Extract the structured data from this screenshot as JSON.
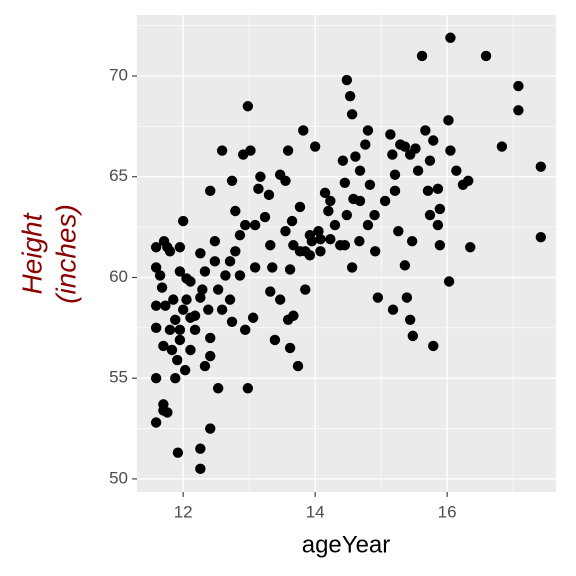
{
  "chart_data": {
    "type": "scatter",
    "xlabel": "ageYear",
    "ylabel_lines": [
      "Height",
      "(inches)"
    ],
    "color": "#000000",
    "grid": true,
    "xlim": [
      11.3,
      17.65
    ],
    "ylim": [
      49.35,
      73.03
    ],
    "xticks": [
      12,
      14,
      16
    ],
    "yticks": [
      50,
      55,
      60,
      65,
      70
    ],
    "x": [
      11.59,
      11.7,
      11.7,
      11.76,
      11.92,
      12.26,
      12.26,
      12.41,
      11.59,
      11.59,
      11.59,
      11.59,
      11.59,
      11.65,
      11.68,
      11.71,
      11.76,
      11.8,
      11.85,
      11.8,
      11.7,
      11.83,
      11.88,
      11.91,
      11.95,
      12.0,
      11.95,
      11.95,
      12.05,
      12.05,
      12.11,
      12.11,
      12.18,
      12.11,
      12.03,
      12.26,
      12.29,
      12.33,
      12.38,
      12.41,
      12.41,
      12.41,
      12.48,
      12.48,
      12.53,
      12.53,
      12.59,
      12.64,
      12.71,
      12.74,
      12.79,
      12.79,
      12.74,
      12.86,
      12.91,
      12.94,
      12.94,
      12.98,
      12.98,
      13.02,
      13.06,
      13.09,
      13.14,
      13.17,
      13.24,
      13.3,
      13.35,
      13.32,
      13.39,
      13.47,
      13.47,
      13.59,
      13.55,
      13.55,
      13.59,
      13.62,
      13.67,
      13.67,
      13.74,
      13.77,
      13.82,
      13.85,
      13.85,
      13.92,
      13.95,
      14.0,
      14.05,
      14.08,
      14.15,
      14.2,
      14.23,
      14.3,
      14.38,
      14.42,
      14.45,
      14.48,
      14.53,
      14.48,
      14.56,
      14.61,
      14.58,
      14.67,
      14.68,
      14.56,
      14.76,
      14.8,
      14.83,
      14.8,
      14.91,
      14.95,
      15.06,
      15.14,
      15.17,
      15.21,
      15.18,
      15.26,
      15.36,
      15.39,
      15.36,
      15.44,
      15.47,
      15.44,
      15.48,
      15.56,
      15.62,
      15.67,
      15.71,
      15.79,
      15.74,
      15.89,
      15.86,
      15.86,
      16.02,
      16.03,
      16.05,
      16.14,
      16.24,
      16.32,
      16.35,
      16.59,
      16.83,
      17.08,
      17.08,
      17.42,
      17.42,
      14.9,
      15.21,
      15.29,
      15.52,
      15.74,
      15.79,
      15.89,
      16.05,
      14.68,
      14.23,
      13.65,
      14.08,
      14.45,
      13.77,
      13.32,
      13.09,
      12.71,
      12.59,
      12.26,
      11.88,
      11.95,
      11.73,
      12.18,
      12.33,
      12.0,
      12.86,
      13.62,
      13.92
    ],
    "y": [
      52.8,
      53.7,
      53.4,
      53.3,
      51.3,
      51.5,
      50.5,
      52.5,
      55.0,
      57.5,
      58.6,
      60.5,
      61.5,
      60.1,
      59.5,
      61.8,
      61.5,
      61.3,
      58.9,
      57.4,
      56.6,
      56.4,
      55.0,
      55.9,
      56.9,
      62.8,
      61.5,
      60.3,
      59.95,
      58.9,
      59.8,
      58.0,
      57.4,
      56.4,
      55.4,
      61.2,
      59.4,
      60.3,
      58.4,
      57.0,
      56.1,
      64.3,
      61.8,
      60.8,
      59.4,
      54.5,
      66.3,
      60.1,
      58.9,
      64.8,
      63.3,
      61.3,
      57.8,
      60.1,
      66.1,
      62.6,
      57.4,
      68.5,
      54.5,
      66.3,
      58.0,
      60.5,
      64.4,
      65.0,
      63.0,
      64.1,
      60.5,
      59.3,
      56.9,
      65.1,
      58.9,
      66.3,
      64.8,
      62.3,
      57.9,
      56.5,
      58.1,
      61.6,
      55.6,
      63.5,
      67.3,
      61.3,
      59.4,
      62.1,
      61.8,
      66.5,
      62.3,
      61.3,
      64.2,
      63.3,
      61.9,
      62.6,
      61.6,
      65.8,
      64.7,
      63.1,
      69.0,
      69.8,
      68.1,
      66.0,
      63.9,
      61.8,
      63.8,
      60.5,
      66.6,
      67.3,
      64.6,
      62.6,
      61.3,
      59.0,
      63.8,
      67.1,
      66.1,
      65.1,
      58.4,
      62.3,
      60.6,
      59.0,
      66.5,
      66.1,
      61.8,
      57.9,
      57.1,
      65.3,
      71.0,
      67.3,
      64.3,
      56.6,
      63.1,
      61.6,
      64.4,
      62.6,
      67.8,
      59.8,
      71.9,
      65.3,
      64.6,
      64.8,
      61.5,
      71.0,
      66.5,
      69.5,
      68.3,
      65.5,
      62.0,
      63.1,
      64.3,
      66.6,
      66.4,
      65.8,
      66.8,
      63.4,
      66.3,
      65.3,
      63.8,
      62.8,
      61.9,
      61.6,
      61.3,
      61.6,
      62.6,
      60.8,
      58.4,
      59.0,
      57.9,
      57.4,
      58.6,
      58.1,
      55.6,
      58.4,
      62.1,
      60.4,
      61.1
    ]
  }
}
